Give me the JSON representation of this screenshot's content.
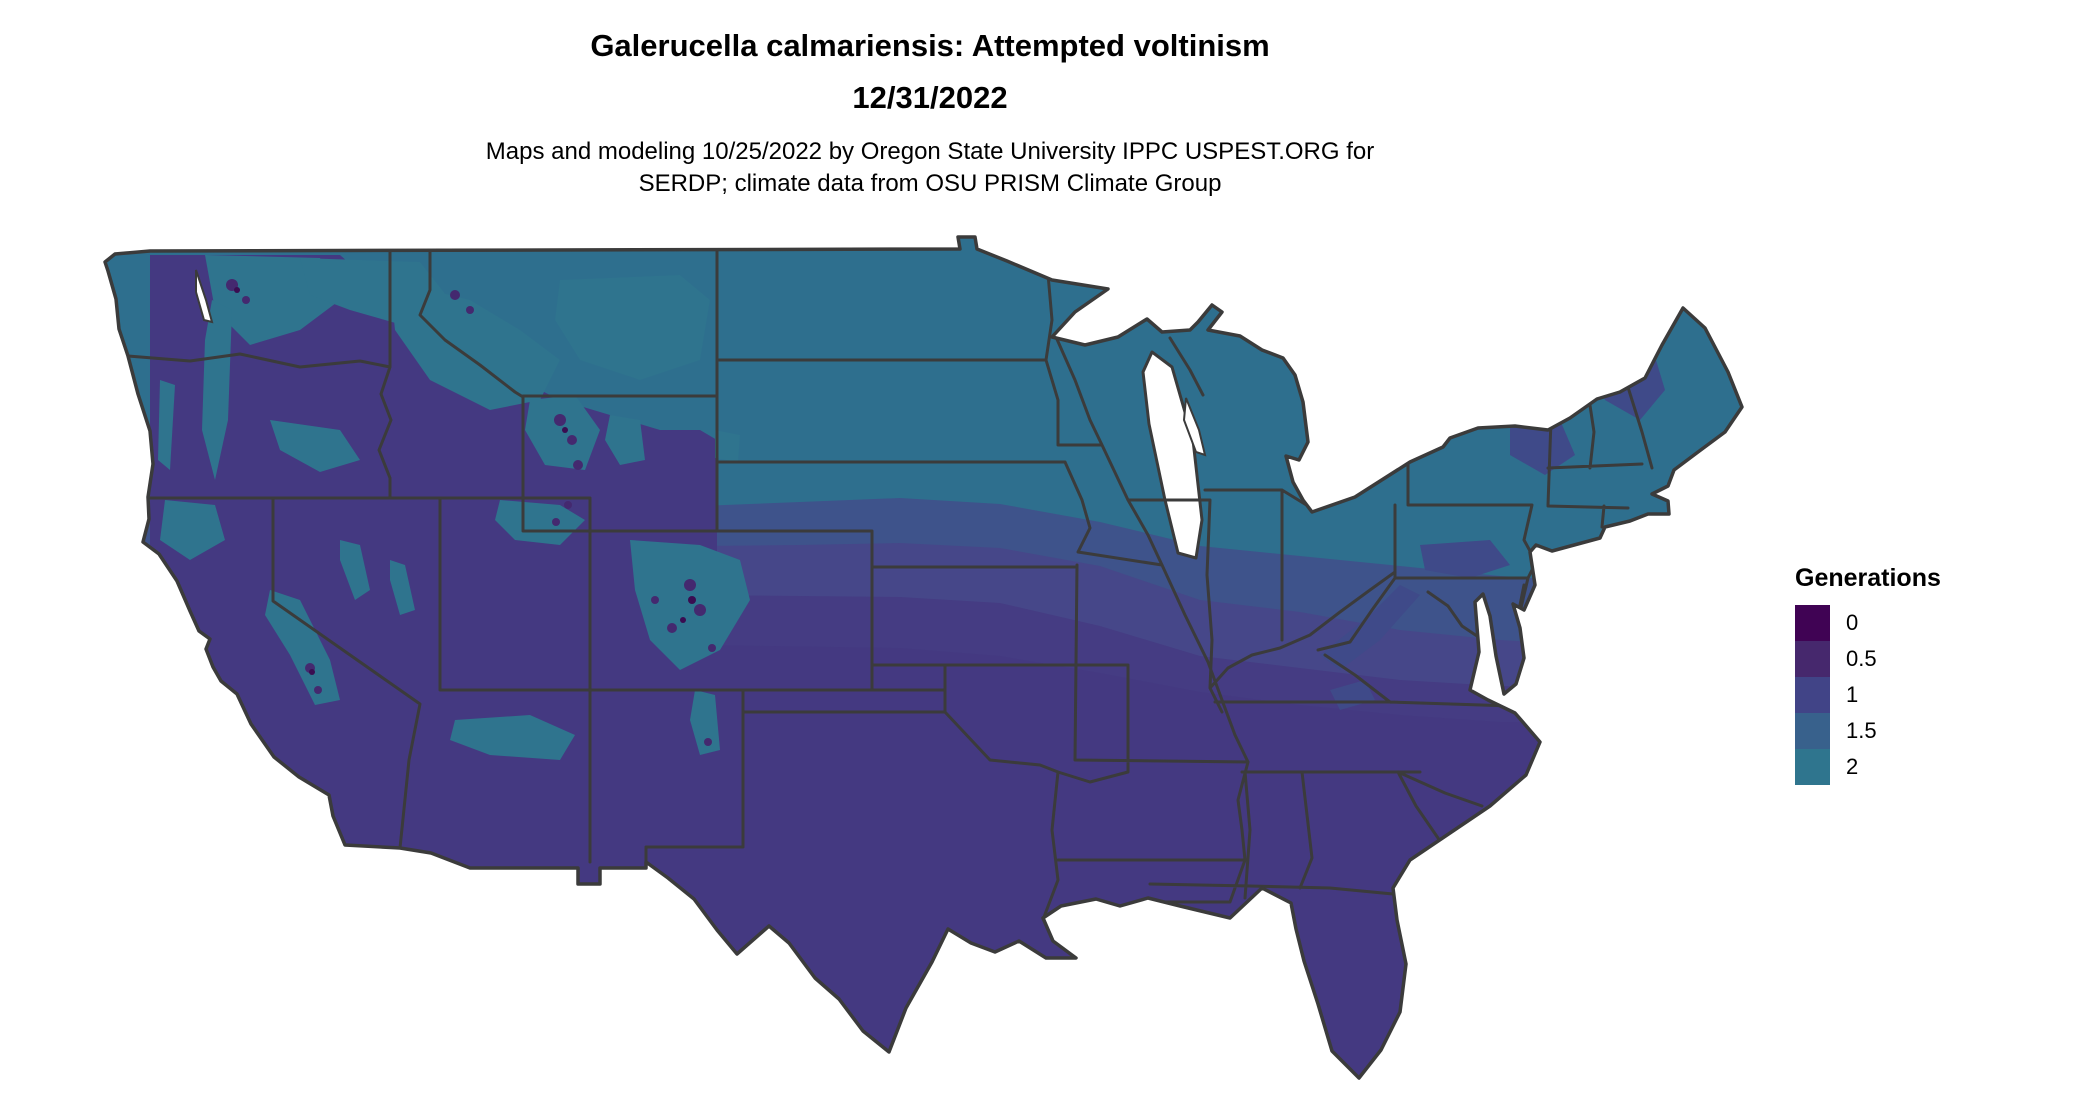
{
  "header": {
    "title": "Galerucella calmariensis: Attempted voltinism",
    "date": "12/31/2022",
    "subtitle_line1": "Maps and modeling 10/25/2022 by Oregon State University IPPC USPEST.ORG for",
    "subtitle_line2": "SERDP; climate data from OSU PRISM Climate Group"
  },
  "legend": {
    "title": "Generations",
    "entries": [
      {
        "label": "0",
        "color": "#400354"
      },
      {
        "label": "0.5",
        "color": "#46286D"
      },
      {
        "label": "1",
        "color": "#414487"
      },
      {
        "label": "1.5",
        "color": "#38618C"
      },
      {
        "label": "2",
        "color": "#2F758E"
      }
    ]
  },
  "map": {
    "border_color": "#3B3B3B",
    "fill_colors": {
      "teal_north": "#2E6F8E",
      "blue_band": "#3E538B",
      "mid_band": "#464789",
      "low_band": "#453C83",
      "purple_south": "#443981",
      "mountain_teal": "#2F748E",
      "highland_dark": "#44296F",
      "highland_darkest": "#3A0D51",
      "northeast_mottle": "#3F4A89",
      "water": "#FFFFFF"
    }
  }
}
